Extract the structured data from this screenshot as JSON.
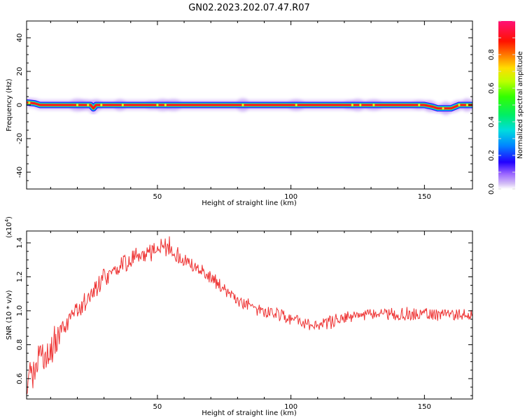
{
  "title": "GN02.2023.202.07.47.R07",
  "chart_data": [
    {
      "type": "heatmap",
      "xlabel": "Height of straight line (km)",
      "ylabel": "Frequency (Hz)",
      "xlim": [
        1,
        168
      ],
      "ylim": [
        -50,
        50
      ],
      "xticks": [
        50,
        100,
        150
      ],
      "yticks": [
        40,
        20,
        0,
        -20,
        -40
      ],
      "grid": false,
      "ridge_frequency": [
        [
          1,
          1.5
        ],
        [
          4,
          1
        ],
        [
          6,
          0
        ],
        [
          25,
          0
        ],
        [
          26,
          -2
        ],
        [
          27,
          0
        ],
        [
          150,
          0
        ],
        [
          153,
          -1
        ],
        [
          155,
          -2
        ],
        [
          160,
          -2
        ],
        [
          163,
          0
        ],
        [
          168,
          0
        ]
      ],
      "colorbar": {
        "label": "Normalized spectral amplitude",
        "range": [
          0,
          1
        ],
        "ticks": [
          "0.0",
          "0.2",
          "0.4",
          "0.6",
          "0.8"
        ]
      }
    },
    {
      "type": "line",
      "xlabel": "Height of straight line (km)",
      "ylabel": "SNR (10 * v/v)",
      "scale_label": "(x10",
      "scale_exp": "4",
      "scale_close": ")",
      "xlim": [
        1,
        168
      ],
      "ylim": [
        0.48,
        1.47
      ],
      "xticks": [
        50,
        100,
        150
      ],
      "yticks": [
        "0.6",
        "0.8",
        "1.0",
        "1.2",
        "1.4"
      ],
      "color": "#ee3333",
      "trend": [
        [
          1,
          0.6
        ],
        [
          10,
          0.78
        ],
        [
          20,
          1.0
        ],
        [
          30,
          1.2
        ],
        [
          40,
          1.3
        ],
        [
          50,
          1.37
        ],
        [
          55,
          1.38
        ],
        [
          60,
          1.3
        ],
        [
          65,
          1.25
        ],
        [
          70,
          1.2
        ],
        [
          80,
          1.06
        ],
        [
          90,
          0.99
        ],
        [
          100,
          0.95
        ],
        [
          108,
          0.91
        ],
        [
          112,
          0.92
        ],
        [
          120,
          0.96
        ],
        [
          130,
          0.98
        ],
        [
          150,
          0.98
        ],
        [
          168,
          0.98
        ]
      ]
    }
  ]
}
